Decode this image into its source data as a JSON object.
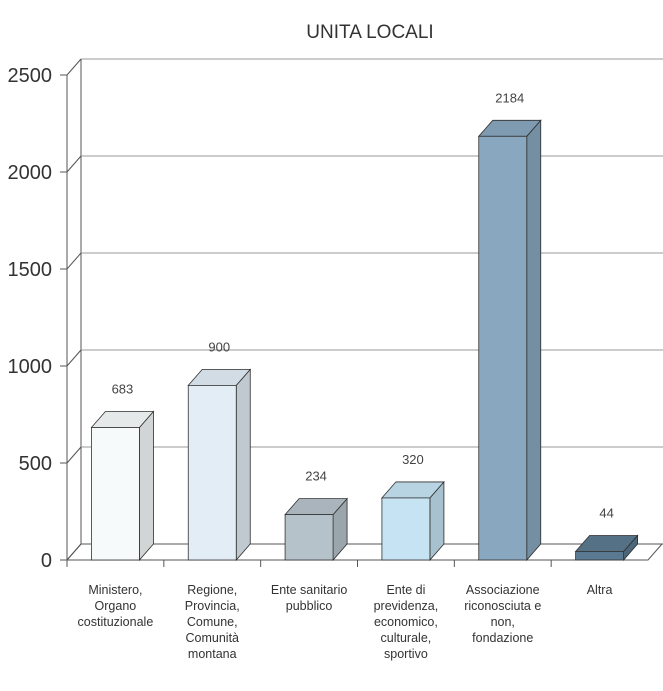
{
  "chart_data": {
    "type": "bar3d",
    "title": "UNITA LOCALI",
    "categories": [
      "Ministero,\nOrgano\ncostituzionale",
      "Regione,\nProvincia,\nComune,\nComunità\nmontana",
      "Ente sanitario\npubblico",
      "Ente di\nprevidenza,\neconomico,\nculturale,\nsportivo",
      "Associazione\nriconosciuta e\nnon,\nfondazione",
      "Altra"
    ],
    "values": [
      683,
      900,
      234,
      320,
      2184,
      44
    ],
    "colors": [
      "#f7fafb",
      "#e2edf5",
      "#b6c2ca",
      "#c6e3f3",
      "#89a7bf",
      "#5b7990"
    ],
    "ylim": [
      0,
      2500
    ],
    "yticks": [
      0,
      500,
      1000,
      1500,
      2000,
      2500
    ],
    "grid": true
  }
}
